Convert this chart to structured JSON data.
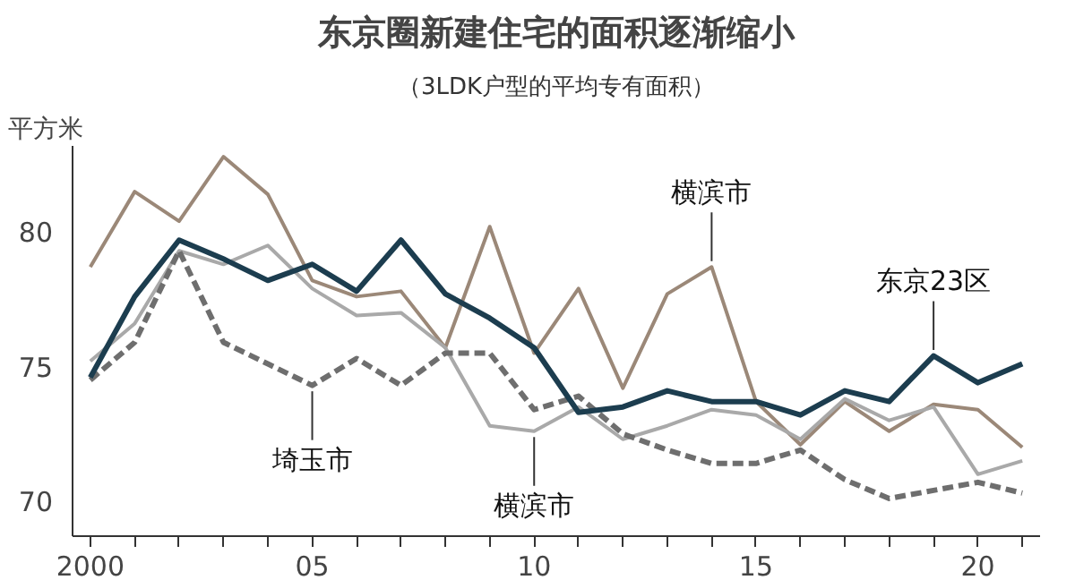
{
  "chart_data": {
    "type": "line",
    "title": "东京圈新建住宅的面积逐渐缩小",
    "subtitle": "（3LDK户型的平均专有面积）",
    "ylabel": "平方米",
    "x": [
      2000,
      2001,
      2002,
      2003,
      2004,
      2005,
      2006,
      2007,
      2008,
      2009,
      2010,
      2011,
      2012,
      2013,
      2014,
      2015,
      2016,
      2017,
      2018,
      2019,
      2020,
      2021
    ],
    "series": [
      {
        "color": "#9b8878",
        "values": [
          78.7,
          81.5,
          80.4,
          82.8,
          81.4,
          78.2,
          77.6,
          77.8,
          75.7,
          80.2,
          75.5,
          77.9,
          74.2,
          77.7,
          78.7,
          73.7,
          72.1,
          73.7,
          72.6,
          73.6,
          73.4,
          72.0
        ]
      },
      {
        "color": "#a9a9a9",
        "values": [
          75.2,
          76.6,
          79.3,
          78.8,
          79.5,
          77.9,
          76.9,
          77.0,
          75.7,
          72.8,
          72.6,
          73.5,
          72.3,
          72.8,
          73.4,
          73.2,
          72.3,
          73.8,
          73.0,
          73.5,
          71.0,
          71.5
        ]
      },
      {
        "color": "#6e6e6e",
        "line_style": "dashed",
        "values": [
          74.5,
          75.9,
          79.3,
          75.9,
          75.1,
          74.3,
          75.3,
          74.3,
          75.5,
          75.5,
          73.4,
          73.9,
          72.5,
          71.9,
          71.4,
          71.4,
          71.9,
          70.8,
          70.1,
          70.4,
          70.7,
          70.3
        ]
      },
      {
        "color": "#1c3d4f",
        "values": [
          74.6,
          77.6,
          79.7,
          79.0,
          78.2,
          78.8,
          77.8,
          79.7,
          77.7,
          76.8,
          75.7,
          73.3,
          73.5,
          74.1,
          73.7,
          73.7,
          73.2,
          74.1,
          73.7,
          75.4,
          74.4,
          75.1
        ]
      }
    ],
    "annotations": [
      {
        "text": "埼玉市",
        "x": 2005,
        "y": 74.3
      },
      {
        "text": "横滨市",
        "x": 2010,
        "y": 72.6
      },
      {
        "text": "横滨市",
        "x": 2014,
        "y": 78.7
      },
      {
        "text": "东京23区",
        "x": 2019,
        "y": 75.4
      }
    ],
    "xlim": [
      1999.6,
      2021.4
    ],
    "ylim": [
      68.7,
      83.2
    ],
    "xticks": [
      {
        "value": 2000,
        "label": "2000"
      },
      {
        "value": 2001,
        "label": null
      },
      {
        "value": 2002,
        "label": null
      },
      {
        "value": 2003,
        "label": null
      },
      {
        "value": 2004,
        "label": null
      },
      {
        "value": 2005,
        "label": "05"
      },
      {
        "value": 2006,
        "label": null
      },
      {
        "value": 2007,
        "label": null
      },
      {
        "value": 2008,
        "label": null
      },
      {
        "value": 2009,
        "label": null
      },
      {
        "value": 2010,
        "label": "10"
      },
      {
        "value": 2011,
        "label": null
      },
      {
        "value": 2012,
        "label": null
      },
      {
        "value": 2013,
        "label": null
      },
      {
        "value": 2014,
        "label": null
      },
      {
        "value": 2015,
        "label": "15"
      },
      {
        "value": 2016,
        "label": null
      },
      {
        "value": 2017,
        "label": null
      },
      {
        "value": 2018,
        "label": null
      },
      {
        "value": 2019,
        "label": null
      },
      {
        "value": 2020,
        "label": "20"
      },
      {
        "value": 2021,
        "label": null
      }
    ],
    "yticks": [
      70,
      75,
      80
    ]
  }
}
